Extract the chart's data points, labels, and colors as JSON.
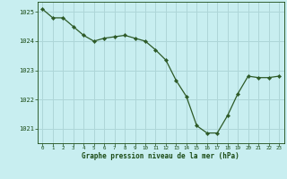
{
  "x": [
    0,
    1,
    2,
    3,
    4,
    5,
    6,
    7,
    8,
    9,
    10,
    11,
    12,
    13,
    14,
    15,
    16,
    17,
    18,
    19,
    20,
    21,
    22,
    23
  ],
  "y": [
    1025.1,
    1024.8,
    1024.8,
    1024.5,
    1024.2,
    1024.0,
    1024.1,
    1024.15,
    1024.2,
    1024.1,
    1024.0,
    1023.7,
    1023.35,
    1022.65,
    1022.1,
    1021.1,
    1020.85,
    1020.85,
    1021.45,
    1022.2,
    1022.8,
    1022.75,
    1022.75,
    1022.8
  ],
  "line_color": "#2d5a27",
  "marker_color": "#2d5a27",
  "bg_color": "#c8eef0",
  "grid_color": "#aed6d8",
  "xlabel": "Graphe pression niveau de la mer (hPa)",
  "xlabel_color": "#1a4a14",
  "tick_color": "#1a4a14",
  "ylim_min": 1020.5,
  "ylim_max": 1025.35,
  "ytick_values": [
    1021,
    1022,
    1023,
    1024,
    1025
  ],
  "xtick_values": [
    0,
    1,
    2,
    3,
    4,
    5,
    6,
    7,
    8,
    9,
    10,
    11,
    12,
    13,
    14,
    15,
    16,
    17,
    18,
    19,
    20,
    21,
    22,
    23
  ]
}
